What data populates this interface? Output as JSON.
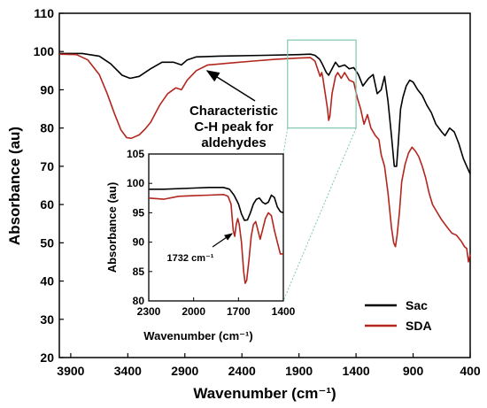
{
  "chart_data": {
    "type": "line",
    "xlabel": "Wavenumber (cm⁻¹)",
    "ylabel": "Absorbance (au)",
    "xlim": [
      4000,
      400
    ],
    "ylim": [
      20,
      110
    ],
    "x_axis_reversed": true,
    "xticks": [
      3900,
      3400,
      2900,
      2400,
      1900,
      1400,
      900,
      400
    ],
    "yticks": [
      20,
      30,
      40,
      50,
      60,
      70,
      80,
      90,
      100,
      110
    ],
    "grid": false,
    "legend_position": "bottom-right",
    "series": [
      {
        "name": "Sac",
        "color": "#000000",
        "points": [
          [
            4000,
            99.5
          ],
          [
            3800,
            99.5
          ],
          [
            3650,
            98.8
          ],
          [
            3550,
            96.8
          ],
          [
            3450,
            93.8
          ],
          [
            3380,
            93
          ],
          [
            3300,
            93.5
          ],
          [
            3200,
            95.5
          ],
          [
            3100,
            97.2
          ],
          [
            3000,
            97.2
          ],
          [
            2930,
            96.5
          ],
          [
            2880,
            97.8
          ],
          [
            2800,
            98.6
          ],
          [
            2600,
            98.8
          ],
          [
            2200,
            99
          ],
          [
            1900,
            99.2
          ],
          [
            1800,
            99.3
          ],
          [
            1760,
            99
          ],
          [
            1720,
            98
          ],
          [
            1700,
            97
          ],
          [
            1660,
            94.5
          ],
          [
            1640,
            93.8
          ],
          [
            1610,
            95.5
          ],
          [
            1580,
            97.2
          ],
          [
            1550,
            96
          ],
          [
            1500,
            96.5
          ],
          [
            1460,
            95.5
          ],
          [
            1420,
            95.8
          ],
          [
            1380,
            94
          ],
          [
            1340,
            91
          ],
          [
            1290,
            93
          ],
          [
            1250,
            94
          ],
          [
            1215,
            89
          ],
          [
            1180,
            90
          ],
          [
            1150,
            93.5
          ],
          [
            1120,
            87
          ],
          [
            1090,
            78
          ],
          [
            1065,
            70
          ],
          [
            1045,
            70
          ],
          [
            1030,
            76
          ],
          [
            1010,
            85
          ],
          [
            990,
            88
          ],
          [
            960,
            91
          ],
          [
            930,
            92.5
          ],
          [
            900,
            92
          ],
          [
            860,
            90
          ],
          [
            820,
            88.5
          ],
          [
            780,
            86
          ],
          [
            740,
            84
          ],
          [
            700,
            81
          ],
          [
            650,
            79
          ],
          [
            620,
            78
          ],
          [
            580,
            80
          ],
          [
            540,
            79
          ],
          [
            500,
            76
          ],
          [
            460,
            72
          ],
          [
            430,
            70
          ],
          [
            400,
            68
          ]
        ]
      },
      {
        "name": "SDA",
        "color": "#b3261e",
        "points": [
          [
            4000,
            99.3
          ],
          [
            3850,
            99.2
          ],
          [
            3750,
            97.8
          ],
          [
            3650,
            94
          ],
          [
            3580,
            89
          ],
          [
            3520,
            84
          ],
          [
            3460,
            79.5
          ],
          [
            3410,
            77.5
          ],
          [
            3370,
            77.3
          ],
          [
            3300,
            78.2
          ],
          [
            3250,
            79.7
          ],
          [
            3200,
            81.5
          ],
          [
            3120,
            86
          ],
          [
            3050,
            89
          ],
          [
            2980,
            90.5
          ],
          [
            2930,
            90
          ],
          [
            2880,
            92.5
          ],
          [
            2800,
            95
          ],
          [
            2700,
            96.5
          ],
          [
            2500,
            97
          ],
          [
            2300,
            97.5
          ],
          [
            2100,
            98
          ],
          [
            1900,
            98.3
          ],
          [
            1800,
            98.4
          ],
          [
            1760,
            97.5
          ],
          [
            1732,
            95
          ],
          [
            1715,
            93.5
          ],
          [
            1700,
            94.5
          ],
          [
            1690,
            93
          ],
          [
            1670,
            89
          ],
          [
            1650,
            85
          ],
          [
            1640,
            82
          ],
          [
            1630,
            83
          ],
          [
            1610,
            89
          ],
          [
            1580,
            93.5
          ],
          [
            1560,
            94.5
          ],
          [
            1530,
            93
          ],
          [
            1500,
            94.5
          ],
          [
            1460,
            92.5
          ],
          [
            1420,
            92
          ],
          [
            1390,
            88
          ],
          [
            1360,
            85
          ],
          [
            1330,
            81
          ],
          [
            1300,
            83.5
          ],
          [
            1270,
            80
          ],
          [
            1230,
            78
          ],
          [
            1200,
            77
          ],
          [
            1180,
            73
          ],
          [
            1150,
            70
          ],
          [
            1120,
            63
          ],
          [
            1090,
            54
          ],
          [
            1070,
            50
          ],
          [
            1055,
            49
          ],
          [
            1040,
            52
          ],
          [
            1020,
            58
          ],
          [
            1000,
            66
          ],
          [
            970,
            70.5
          ],
          [
            940,
            73.5
          ],
          [
            910,
            75
          ],
          [
            880,
            74
          ],
          [
            850,
            72.5
          ],
          [
            820,
            70
          ],
          [
            790,
            67
          ],
          [
            760,
            63
          ],
          [
            730,
            60
          ],
          [
            700,
            58.5
          ],
          [
            650,
            56
          ],
          [
            600,
            54
          ],
          [
            560,
            52.5
          ],
          [
            520,
            52
          ],
          [
            480,
            50.5
          ],
          [
            450,
            49
          ],
          [
            430,
            48.5
          ],
          [
            415,
            45
          ],
          [
            400,
            47
          ]
        ]
      }
    ],
    "annotations": [
      {
        "text_lines": [
          "Characteristic",
          "C-H peak for",
          "aldehydes"
        ],
        "arrow_target_x": 2400,
        "arrow_target_y": 97
      }
    ],
    "zoom_box": {
      "xrange": [
        2000,
        1400
      ],
      "yrange": [
        80,
        103
      ]
    },
    "inset": {
      "xlabel": "Wavenumber (cm⁻¹)",
      "ylabel": "Absorbance (au)",
      "xlim": [
        2300,
        1400
      ],
      "ylim": [
        80,
        105
      ],
      "xticks": [
        2300,
        2000,
        1700,
        1400
      ],
      "yticks": [
        80,
        85,
        90,
        95,
        100,
        105
      ],
      "annotation": {
        "text": "1732 cm⁻¹",
        "arrow_target_x": 1732,
        "arrow_target_y": 91.5
      },
      "series": [
        {
          "name": "Sac",
          "color": "#000000",
          "points": [
            [
              2300,
              99
            ],
            [
              2200,
              99
            ],
            [
              2000,
              99.2
            ],
            [
              1900,
              99.3
            ],
            [
              1800,
              99.3
            ],
            [
              1760,
              99
            ],
            [
              1730,
              98
            ],
            [
              1700,
              96.5
            ],
            [
              1680,
              94.8
            ],
            [
              1660,
              93.7
            ],
            [
              1640,
              93.8
            ],
            [
              1620,
              95
            ],
            [
              1600,
              96.5
            ],
            [
              1580,
              97.3
            ],
            [
              1560,
              97.5
            ],
            [
              1540,
              96.8
            ],
            [
              1520,
              96.5
            ],
            [
              1500,
              96.8
            ],
            [
              1480,
              98
            ],
            [
              1460,
              97.6
            ],
            [
              1440,
              96
            ],
            [
              1420,
              95.2
            ],
            [
              1400,
              95
            ]
          ]
        },
        {
          "name": "SDA",
          "color": "#b3261e",
          "points": [
            [
              2300,
              97.5
            ],
            [
              2200,
              97.3
            ],
            [
              2100,
              97.8
            ],
            [
              2000,
              97.9
            ],
            [
              1900,
              98
            ],
            [
              1800,
              98.1
            ],
            [
              1770,
              97.8
            ],
            [
              1750,
              96.5
            ],
            [
              1735,
              92
            ],
            [
              1725,
              91
            ],
            [
              1715,
              93
            ],
            [
              1705,
              94
            ],
            [
              1695,
              93
            ],
            [
              1680,
              90
            ],
            [
              1665,
              85
            ],
            [
              1655,
              83
            ],
            [
              1645,
              83.5
            ],
            [
              1630,
              87
            ],
            [
              1615,
              91
            ],
            [
              1600,
              93
            ],
            [
              1585,
              93.5
            ],
            [
              1570,
              92
            ],
            [
              1555,
              90.5
            ],
            [
              1540,
              92
            ],
            [
              1520,
              94
            ],
            [
              1500,
              95
            ],
            [
              1480,
              94.5
            ],
            [
              1460,
              92
            ],
            [
              1440,
              90
            ],
            [
              1420,
              88
            ],
            [
              1400,
              88
            ]
          ]
        }
      ]
    }
  }
}
